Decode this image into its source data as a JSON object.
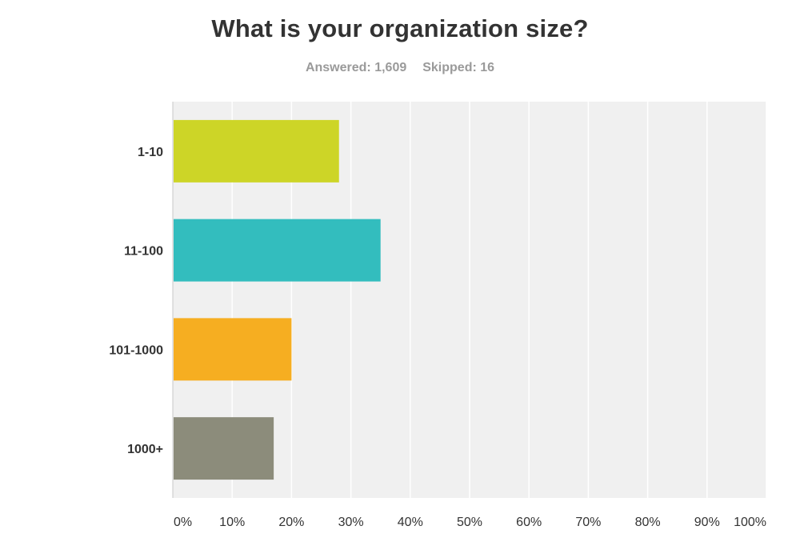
{
  "header": {
    "title": "What is your organization size?",
    "answered": "Answered: 1,609",
    "skipped": "Skipped: 16"
  },
  "chart_data": {
    "type": "bar",
    "orientation": "horizontal",
    "title": "What is your organization size?",
    "xlabel": "",
    "ylabel": "",
    "categories": [
      "1-10",
      "11-100",
      "101-1000",
      "1000+"
    ],
    "values": [
      28,
      35,
      20,
      17
    ],
    "colors": [
      "#cdd527",
      "#33bdbe",
      "#f6ae21",
      "#8c8c7b"
    ],
    "xlim": [
      0,
      100
    ],
    "ticks": [
      "0%",
      "10%",
      "20%",
      "30%",
      "40%",
      "50%",
      "60%",
      "70%",
      "80%",
      "90%",
      "100%"
    ],
    "grid": true,
    "legend": "none",
    "background_color": "#f0f0f0"
  }
}
